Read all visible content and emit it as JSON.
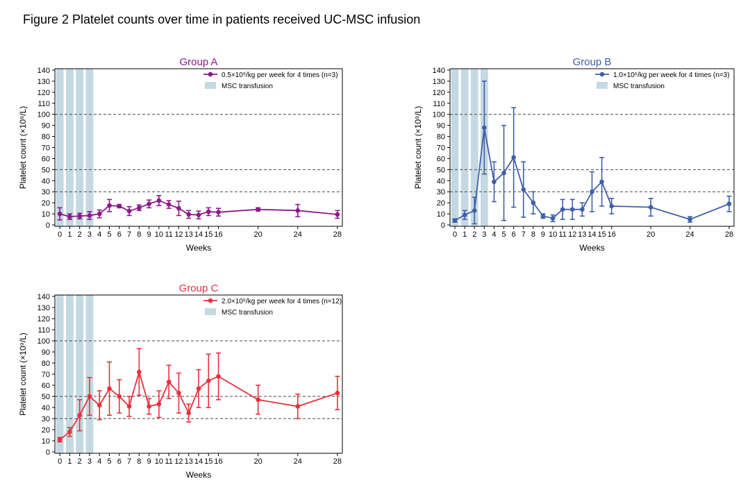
{
  "figure_title": "Figure 2 Platelet counts over time in patients received UC-MSC infusion",
  "chart_data": [
    {
      "type": "line",
      "title": "Group A",
      "color": "#8b1a89",
      "xlabel": "Weeks",
      "ylabel": "Platelet count (×10⁹/L)",
      "xlim": [
        -0.5,
        28.5
      ],
      "ylim": [
        0,
        140
      ],
      "xticks": [
        0,
        1,
        2,
        3,
        4,
        5,
        6,
        7,
        8,
        9,
        10,
        11,
        12,
        13,
        14,
        15,
        16,
        20,
        24,
        28
      ],
      "yticks": [
        0,
        10,
        20,
        30,
        40,
        50,
        60,
        70,
        80,
        90,
        100,
        110,
        120,
        130,
        140
      ],
      "reference_lines": [
        30,
        50,
        100
      ],
      "transfusion_weeks": [
        0,
        1,
        2,
        3
      ],
      "legend": {
        "series": "0.5×10⁶/kg per week for 4 times (n=3)",
        "transfusion": "MSC transfusion"
      },
      "x": [
        0,
        1,
        2,
        3,
        4,
        5,
        6,
        7,
        8,
        9,
        10,
        11,
        12,
        13,
        14,
        15,
        16,
        20,
        24,
        28
      ],
      "y": [
        10,
        7.5,
        8,
        8.5,
        10,
        17.5,
        17,
        12.5,
        15.5,
        19,
        22,
        18.5,
        15,
        9.5,
        9,
        12,
        11.5,
        14,
        13,
        9.5
      ],
      "error": [
        5.5,
        2.5,
        2.5,
        3.5,
        3.5,
        5.5,
        1.5,
        4,
        2.5,
        3.5,
        4.5,
        3.5,
        6.5,
        3.5,
        3.5,
        3.5,
        3.5,
        1.5,
        5.5,
        3.5
      ]
    },
    {
      "type": "line",
      "title": "Group B",
      "color": "#3f5fa8",
      "xlabel": "Weeks",
      "ylabel": "Platelet count (×10⁹/L)",
      "xlim": [
        -0.5,
        28.5
      ],
      "ylim": [
        0,
        140
      ],
      "xticks": [
        0,
        1,
        2,
        3,
        4,
        5,
        6,
        7,
        8,
        9,
        10,
        11,
        12,
        13,
        14,
        15,
        16,
        20,
        24,
        28
      ],
      "yticks": [
        0,
        10,
        20,
        30,
        40,
        50,
        60,
        70,
        80,
        90,
        100,
        110,
        120,
        130,
        140
      ],
      "reference_lines": [
        30,
        50,
        100
      ],
      "transfusion_weeks": [
        0,
        1,
        2,
        3
      ],
      "legend": {
        "series": "1.0×10⁶/kg per week for 4 times (n=3)",
        "transfusion": "MSC transfusion"
      },
      "x": [
        0,
        1,
        2,
        3,
        4,
        5,
        6,
        7,
        8,
        9,
        10,
        11,
        12,
        13,
        14,
        15,
        16,
        20,
        24,
        28
      ],
      "y": [
        4,
        9,
        13,
        88,
        39,
        47,
        61,
        32,
        20,
        8,
        6,
        14,
        14,
        14,
        30,
        39,
        17,
        16,
        5,
        19
      ],
      "error": [
        1.5,
        4,
        12,
        42,
        18,
        43,
        45,
        25,
        10,
        2,
        3,
        9,
        9,
        6,
        18,
        22,
        7,
        8,
        2.5,
        7
      ]
    },
    {
      "type": "line",
      "title": "Group C",
      "color": "#e8303d",
      "xlabel": "Weeks",
      "ylabel": "Platelet count (×10⁹/L)",
      "xlim": [
        -0.5,
        28.5
      ],
      "ylim": [
        0,
        140
      ],
      "xticks": [
        0,
        1,
        2,
        3,
        4,
        5,
        6,
        7,
        8,
        9,
        10,
        11,
        12,
        13,
        14,
        15,
        16,
        20,
        24,
        28
      ],
      "yticks": [
        0,
        10,
        20,
        30,
        40,
        50,
        60,
        70,
        80,
        90,
        100,
        110,
        120,
        130,
        140
      ],
      "reference_lines": [
        30,
        50,
        100
      ],
      "transfusion_weeks": [
        0,
        1,
        2,
        3
      ],
      "legend": {
        "series": "2.0×10⁶/kg per week for 4 times (n=12)",
        "transfusion": "MSC transfusion"
      },
      "x": [
        0,
        1,
        2,
        3,
        4,
        5,
        6,
        7,
        8,
        9,
        10,
        11,
        12,
        13,
        14,
        15,
        16,
        20,
        24,
        28
      ],
      "y": [
        11,
        18,
        33,
        50,
        42,
        57,
        50,
        41,
        72,
        41,
        43,
        63,
        53,
        35,
        57,
        64,
        68,
        47,
        41,
        53
      ],
      "error": [
        2,
        4,
        14,
        17,
        13,
        24,
        15,
        9,
        21,
        7,
        12,
        15,
        18,
        8,
        17,
        24,
        21,
        13,
        11,
        15
      ]
    }
  ]
}
